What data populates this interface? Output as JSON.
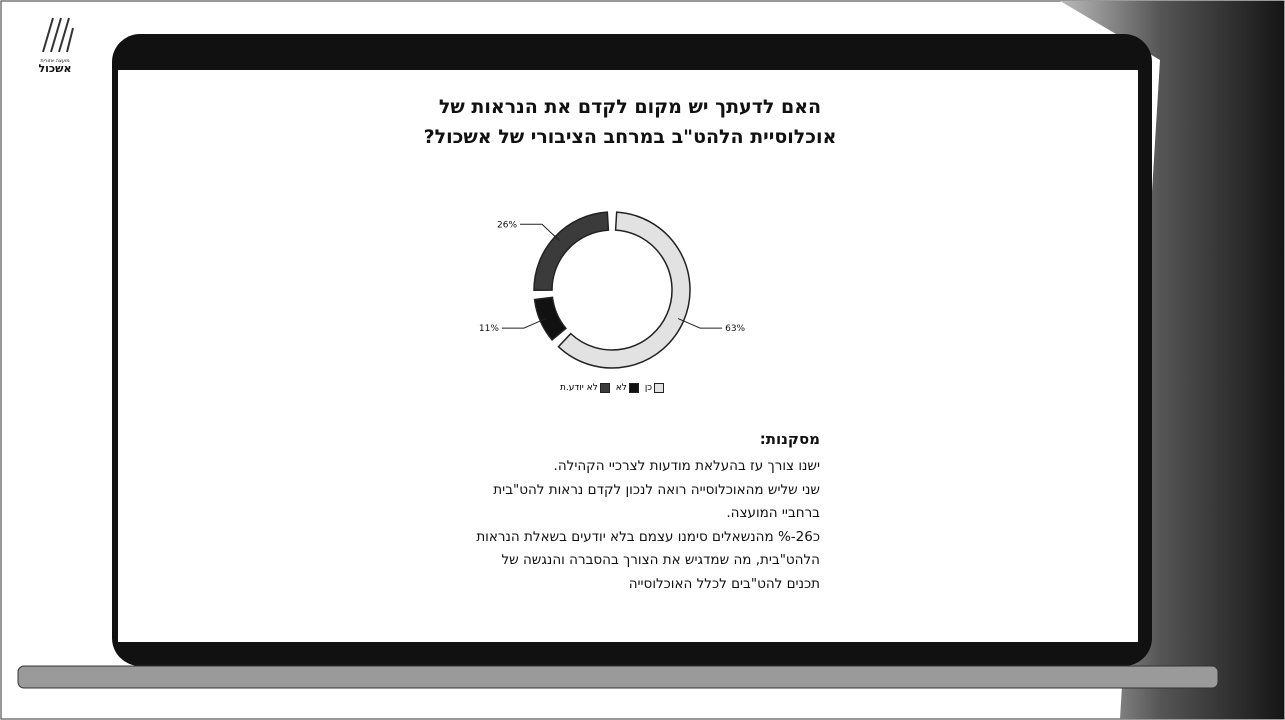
{
  "logo": {
    "subtitle": "מועצה אזורית",
    "name": "אשכול"
  },
  "chart_data": {
    "type": "donut",
    "title_lines": [
      "האם לדעתך יש מקום לקדם את הנראות של",
      "אוכלוסיית הלהט\"ב במרחב הציבורי של אשכול?"
    ],
    "categories": [
      "כן",
      "לא",
      "לא יודע.ת"
    ],
    "values": [
      63,
      11,
      26
    ],
    "value_labels": [
      "63%",
      "11%",
      "26%"
    ],
    "colors": [
      "#e2e2e2",
      "#111111",
      "#3b3b3b"
    ]
  },
  "conclusions": {
    "heading": "מסקנות:",
    "lines": [
      "ישנו צורך עז בהעלאת  מודעות לצרכיי הקהילה.",
      "שני שליש מהאוכלוסייה רואה לנכון לקדם נראות להט\"בית",
      "ברחביי המועצה.",
      "כ26-% מהנשאלים סימנו עצמם בלא יודעים בשאלת הנראות",
      "הלהט\"בית, מה שמדגיש את הצורך בהסברה והנגשה של",
      "תכנים להט\"בים לכלל האוכלוסייה"
    ]
  }
}
